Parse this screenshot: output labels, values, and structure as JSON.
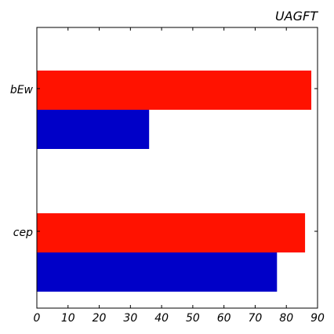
{
  "chart_data": {
    "type": "bar",
    "orientation": "horizontal",
    "title": "UAGFT",
    "xlabel": "",
    "ylabel": "",
    "categories": [
      "bEw",
      "cep"
    ],
    "series": [
      {
        "color": "#ff1200",
        "values": [
          88,
          86
        ]
      },
      {
        "color": "#0000c8",
        "values": [
          36,
          77
        ]
      }
    ],
    "xlim": [
      0,
      90
    ],
    "xticks": [
      0,
      10,
      20,
      30,
      40,
      50,
      60,
      70,
      80,
      90
    ],
    "grid": false,
    "legend": "none"
  }
}
